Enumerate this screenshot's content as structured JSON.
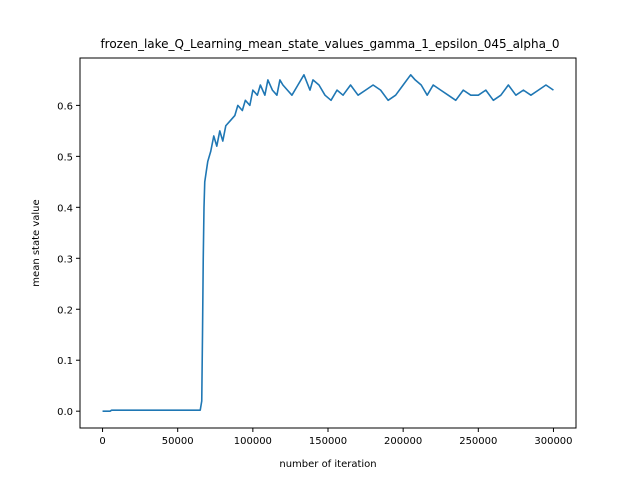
{
  "chart_data": {
    "type": "line",
    "title": "frozen_lake_Q_Learning_mean_state_values_gamma_1_epsilon_045_alpha_0",
    "xlabel": "number of iteration",
    "ylabel": "mean state value",
    "xlim": [
      -15000,
      315000
    ],
    "ylim": [
      -0.033,
      0.693
    ],
    "xticks": [
      0,
      50000,
      100000,
      150000,
      200000,
      250000,
      300000
    ],
    "yticks": [
      0.0,
      0.1,
      0.2,
      0.3,
      0.4,
      0.5,
      0.6
    ],
    "xtick_labels": [
      "0",
      "50000",
      "100000",
      "150000",
      "200000",
      "250000",
      "300000"
    ],
    "ytick_labels": [
      "0.0",
      "0.1",
      "0.2",
      "0.3",
      "0.4",
      "0.5",
      "0.6"
    ],
    "grid": false,
    "legend": "none",
    "colors": {
      "series": "#1f77b4"
    },
    "series": [
      {
        "x": [
          0,
          5000,
          6000,
          10000,
          20000,
          30000,
          40000,
          50000,
          60000,
          65000,
          66000,
          66500,
          67000,
          67500,
          68000,
          69000,
          70000,
          72000,
          74000,
          76000,
          78000,
          80000,
          82000,
          85000,
          88000,
          90000,
          93000,
          95000,
          98000,
          100000,
          103000,
          105000,
          108000,
          110000,
          113000,
          116000,
          118000,
          120000,
          123000,
          126000,
          130000,
          134000,
          138000,
          140000,
          144000,
          148000,
          152000,
          156000,
          160000,
          165000,
          170000,
          175000,
          180000,
          185000,
          190000,
          195000,
          200000,
          205000,
          208000,
          212000,
          216000,
          220000,
          225000,
          230000,
          235000,
          240000,
          245000,
          250000,
          255000,
          260000,
          265000,
          270000,
          275000,
          280000,
          285000,
          290000,
          295000,
          300000
        ],
        "y": [
          0.0,
          0.0,
          0.002,
          0.002,
          0.002,
          0.002,
          0.002,
          0.002,
          0.002,
          0.002,
          0.02,
          0.15,
          0.3,
          0.4,
          0.45,
          0.47,
          0.49,
          0.51,
          0.54,
          0.52,
          0.55,
          0.53,
          0.56,
          0.57,
          0.58,
          0.6,
          0.59,
          0.61,
          0.6,
          0.63,
          0.62,
          0.64,
          0.62,
          0.65,
          0.63,
          0.62,
          0.65,
          0.64,
          0.63,
          0.62,
          0.64,
          0.66,
          0.63,
          0.65,
          0.64,
          0.62,
          0.61,
          0.63,
          0.62,
          0.64,
          0.62,
          0.63,
          0.64,
          0.63,
          0.61,
          0.62,
          0.64,
          0.66,
          0.65,
          0.64,
          0.62,
          0.64,
          0.63,
          0.62,
          0.61,
          0.63,
          0.62,
          0.62,
          0.63,
          0.61,
          0.62,
          0.64,
          0.62,
          0.63,
          0.62,
          0.63,
          0.64,
          0.63
        ]
      }
    ]
  }
}
